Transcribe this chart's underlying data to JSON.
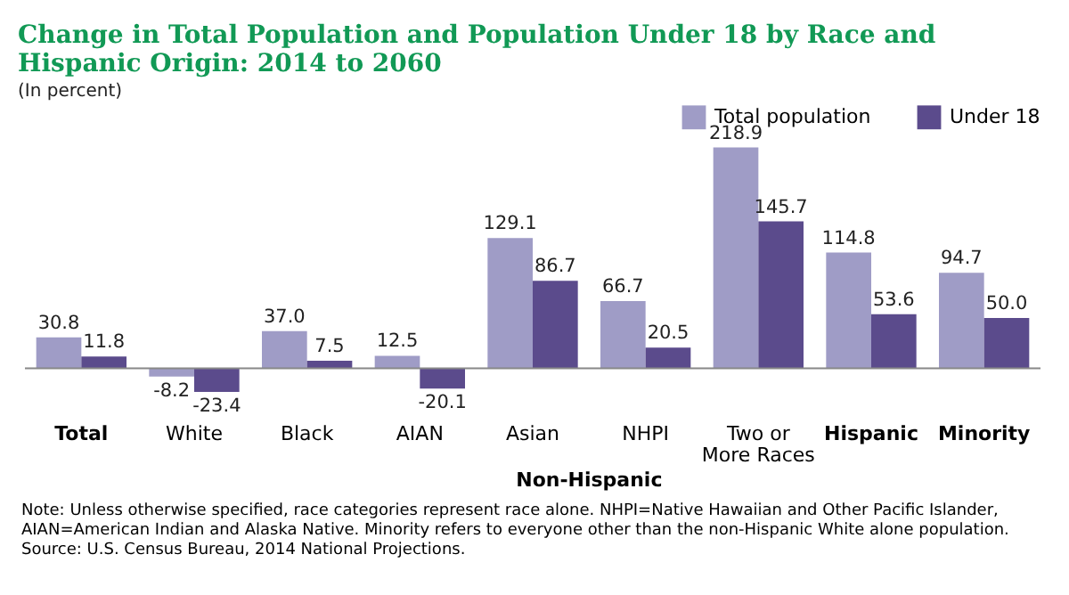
{
  "chart_data": {
    "type": "bar",
    "title": "Change in Total Population and Population Under 18 by Race and Hispanic Origin: 2014 to 2060",
    "subtitle": "(In percent)",
    "categories": [
      "Total",
      "White",
      "Black",
      "AIAN",
      "Asian",
      "NHPI",
      "Two or More Races",
      "Hispanic",
      "Minority"
    ],
    "series": [
      {
        "name": "Total population",
        "color": "#9f9cc6",
        "values": [
          30.8,
          -8.2,
          37.0,
          12.5,
          129.1,
          66.7,
          218.9,
          114.8,
          94.7
        ],
        "value_labels": [
          "30.8",
          "-8.2",
          "37.0",
          "12.5",
          "129.1",
          "66.7",
          "218.9",
          "114.8",
          "94.7"
        ]
      },
      {
        "name": "Under 18",
        "color": "#5b4b8c",
        "values": [
          11.8,
          -23.4,
          7.5,
          -20.1,
          86.7,
          20.5,
          145.7,
          53.6,
          50.0
        ],
        "value_labels": [
          "11.8",
          "-23.4",
          "7.5",
          "-20.1",
          "86.7",
          "20.5",
          "145.7",
          "53.6",
          "50.0"
        ]
      }
    ],
    "legend": "top right",
    "annotations": [
      "Non-Hispanic",
      "Note: Unless otherwise specified, race categories represent race alone.  NHPI=Native Hawaiian and Other Pacific Islander, AIAN=American Indian and Alaska Native.  Minority refers to everyone other than the non-Hispanic White alone population.",
      "Source: U.S. Census Bureau, 2014 National Projections."
    ]
  }
}
